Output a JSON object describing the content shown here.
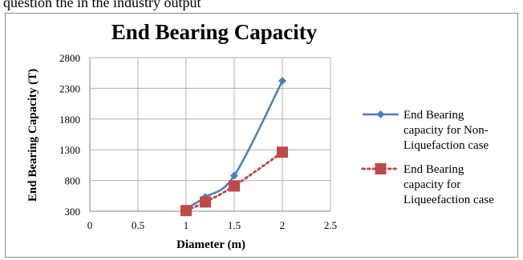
{
  "page": {
    "top_text": "question the in the industry output"
  },
  "colors": {
    "series_1": "#4a7ebb",
    "series_2": "#be4b48",
    "grid": "#b0b0b0",
    "axis": "#868686",
    "frame": "#8a8a8a"
  },
  "chart_data": {
    "type": "line",
    "title": "End Bearing Capacity",
    "xlabel": "Diameter (m)",
    "ylabel": "End Bearing Capacity (T)",
    "xlim": [
      0,
      2.5
    ],
    "ylim": [
      300,
      2800
    ],
    "xticks": [
      "0",
      "0.5",
      "1",
      "1.5",
      "2",
      "2.5"
    ],
    "yticks": [
      "300",
      "800",
      "1300",
      "1800",
      "2300",
      "2800"
    ],
    "grid": true,
    "legend_position": "right",
    "series": [
      {
        "name": "End Bearing capacity for Non-Liquefaction case",
        "legend_lines": [
          "End Bearing",
          "capacity for Non-",
          "Liquefaction case"
        ],
        "marker": "diamond",
        "line_style": "solid",
        "color": "#4a7ebb",
        "x": [
          1,
          1.2,
          1.5,
          2
        ],
        "y": [
          340,
          530,
          880,
          2420
        ]
      },
      {
        "name": "End Bearing capacity for Liqueefaction case",
        "legend_lines": [
          "End Bearing",
          "capacity for",
          "Liqueefaction case"
        ],
        "marker": "square",
        "line_style": "dotted",
        "color": "#be4b48",
        "x": [
          1,
          1.2,
          1.5,
          2
        ],
        "y": [
          310,
          450,
          710,
          1260
        ]
      }
    ]
  }
}
